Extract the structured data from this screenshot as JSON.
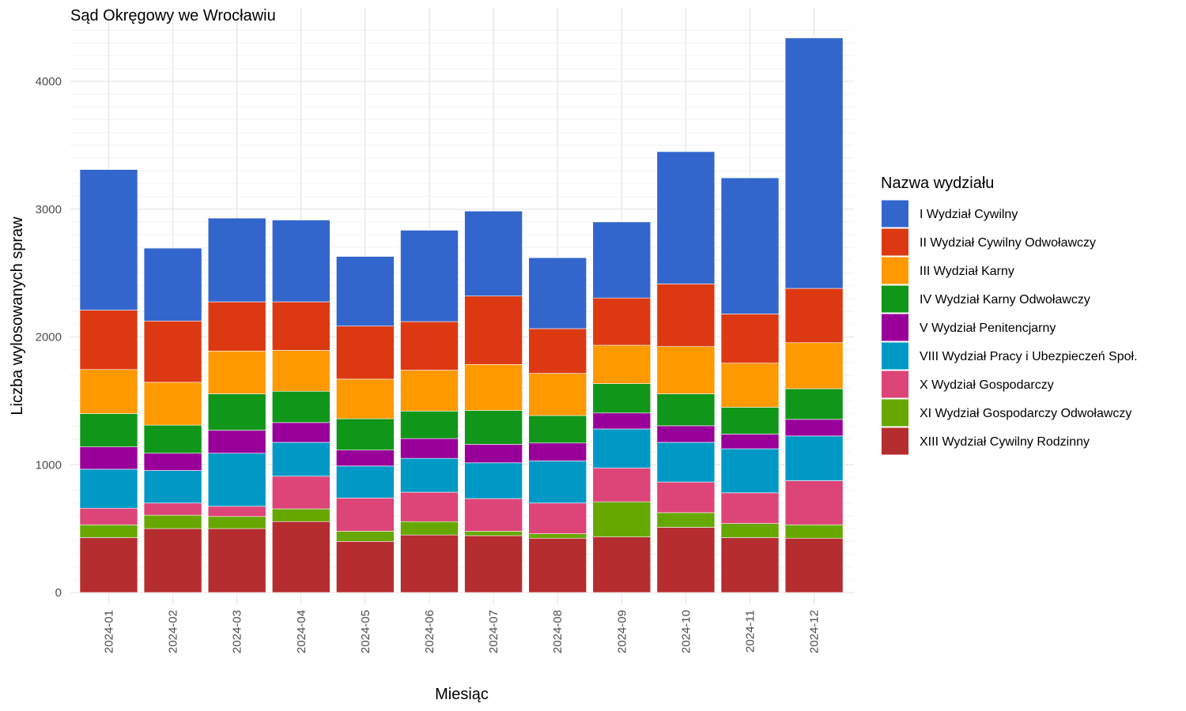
{
  "chart_data": {
    "type": "bar",
    "stacked": true,
    "title": "Sąd Okręgowy we Wrocławiu",
    "xlabel": "Miesiąc",
    "ylabel": "Liczba wylosowanych spraw",
    "ylim": [
      0,
      4450
    ],
    "yticks": [
      0,
      1000,
      2000,
      3000,
      4000
    ],
    "grid": true,
    "legend": {
      "title": "Nazwa wydziału",
      "position": "right"
    },
    "categories": [
      "2024-01",
      "2024-02",
      "2024-03",
      "2024-04",
      "2024-05",
      "2024-06",
      "2024-07",
      "2024-08",
      "2024-09",
      "2024-10",
      "2024-11",
      "2024-12"
    ],
    "series": [
      {
        "name": "XIII Wydział Cywilny Rodzinny",
        "color": "#B52D2F",
        "values": [
          430,
          500,
          500,
          555,
          400,
          450,
          445,
          425,
          435,
          510,
          430,
          425
        ]
      },
      {
        "name": "XI Wydział Gospodarczy Odwoławczy",
        "color": "#66A800",
        "values": [
          100,
          105,
          95,
          100,
          80,
          105,
          35,
          35,
          275,
          115,
          110,
          105
        ]
      },
      {
        "name": "X Wydział Gospodarczy",
        "color": "#DD4477",
        "values": [
          130,
          95,
          80,
          255,
          260,
          230,
          255,
          240,
          265,
          240,
          240,
          345
        ]
      },
      {
        "name": "VIII Wydział Pracy i Ubezpieczeń Społ.",
        "color": "#0099C6",
        "values": [
          305,
          255,
          415,
          265,
          250,
          265,
          280,
          330,
          305,
          310,
          345,
          350
        ]
      },
      {
        "name": "V Wydział Penitencjarny",
        "color": "#990099",
        "values": [
          175,
          135,
          180,
          155,
          125,
          155,
          145,
          140,
          125,
          130,
          115,
          130
        ]
      },
      {
        "name": "IV Wydział Karny Odwoławczy",
        "color": "#109618",
        "values": [
          260,
          220,
          285,
          245,
          245,
          215,
          265,
          215,
          230,
          250,
          210,
          240
        ]
      },
      {
        "name": "III Wydział Karny",
        "color": "#FF9900",
        "values": [
          345,
          335,
          335,
          320,
          310,
          320,
          360,
          330,
          300,
          370,
          345,
          360
        ]
      },
      {
        "name": "II Wydział Cywilny Odwoławczy",
        "color": "#DC3912",
        "values": [
          465,
          480,
          385,
          380,
          415,
          380,
          535,
          350,
          370,
          490,
          385,
          425
        ]
      },
      {
        "name": "I Wydział Cywilny",
        "color": "#3366CC",
        "values": [
          1100,
          570,
          655,
          640,
          545,
          715,
          665,
          555,
          595,
          1035,
          1065,
          1960
        ]
      }
    ]
  }
}
